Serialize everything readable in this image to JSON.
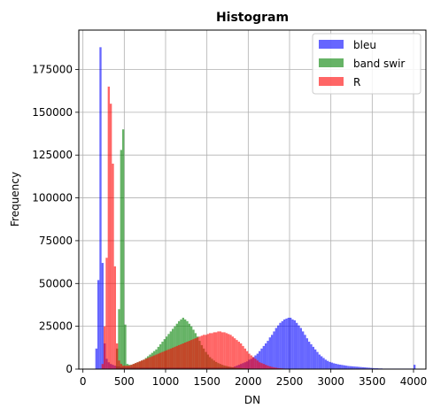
{
  "chart_data": {
    "type": "bar",
    "title": "Histogram",
    "xlabel": "DN",
    "ylabel": "Frequency",
    "xlim": [
      -50,
      4150
    ],
    "ylim": [
      0,
      198000
    ],
    "xticks": [
      0,
      500,
      1000,
      1500,
      2000,
      2500,
      3000,
      3500,
      4000
    ],
    "yticks": [
      0,
      25000,
      50000,
      75000,
      100000,
      125000,
      150000,
      175000
    ],
    "grid": true,
    "legend_position": "top-right",
    "bin_width": 25,
    "series": [
      {
        "name": "bleu",
        "color": "#0000ff",
        "opacity": 0.6,
        "x": [
          150,
          175,
          200,
          225,
          250,
          275,
          300,
          325,
          350,
          375,
          400,
          425,
          450,
          475,
          500,
          525,
          550,
          575,
          600,
          625,
          650,
          675,
          700,
          725,
          750,
          775,
          800,
          825,
          850,
          875,
          900,
          925,
          950,
          975,
          1000,
          1025,
          1050,
          1075,
          1100,
          1125,
          1150,
          1175,
          1200,
          1225,
          1250,
          1275,
          1300,
          1325,
          1350,
          1375,
          1400,
          1425,
          1450,
          1475,
          1500,
          1525,
          1550,
          1575,
          1600,
          1625,
          1650,
          1675,
          1700,
          1725,
          1750,
          1775,
          1800,
          1825,
          1850,
          1875,
          1900,
          1925,
          1950,
          1975,
          2000,
          2025,
          2050,
          2075,
          2100,
          2125,
          2150,
          2175,
          2200,
          2225,
          2250,
          2275,
          2300,
          2325,
          2350,
          2375,
          2400,
          2425,
          2450,
          2475,
          2500,
          2525,
          2550,
          2575,
          2600,
          2625,
          2650,
          2675,
          2700,
          2725,
          2750,
          2775,
          2800,
          2825,
          2850,
          2875,
          2900,
          2925,
          2950,
          2975,
          3000,
          3025,
          3050,
          3075,
          3100,
          3125,
          3150,
          3175,
          3200,
          3225,
          3250,
          3275,
          3300,
          3325,
          3350,
          3375,
          3400,
          3425,
          3450,
          3475,
          3500,
          3525,
          3550,
          3575,
          3600,
          3625,
          3650,
          3675,
          3700,
          3725,
          3750,
          3775,
          3800,
          3825,
          3850,
          3875,
          3900,
          3925,
          3950,
          3975,
          4000
        ],
        "values": [
          12000,
          52000,
          188000,
          62000,
          15000,
          6000,
          4000,
          3000,
          2500,
          2000,
          1500,
          1500,
          1000,
          1000,
          1000,
          1000,
          1000,
          1000,
          1000,
          1000,
          1000,
          1000,
          1000,
          1000,
          1000,
          1000,
          1000,
          1000,
          1000,
          1000,
          1000,
          1000,
          1000,
          1000,
          1000,
          1000,
          1000,
          1000,
          1000,
          1000,
          1000,
          1000,
          1000,
          1000,
          1000,
          1000,
          1000,
          1000,
          1000,
          1000,
          1000,
          1000,
          1000,
          1000,
          1000,
          1000,
          1000,
          1000,
          1000,
          1000,
          1000,
          1000,
          1000,
          1000,
          1000,
          1000,
          1000,
          1500,
          2000,
          2500,
          3000,
          3500,
          4000,
          4500,
          5500,
          6000,
          7000,
          8000,
          9000,
          10500,
          12000,
          13500,
          15000,
          16500,
          18500,
          20000,
          22000,
          24000,
          25500,
          27000,
          28000,
          29000,
          29500,
          30000,
          30000,
          29000,
          28500,
          27000,
          25500,
          24000,
          22000,
          20000,
          18000,
          16000,
          14500,
          13000,
          11500,
          10000,
          8500,
          7500,
          6500,
          5500,
          4800,
          4200,
          3800,
          3400,
          3100,
          2800,
          2600,
          2400,
          2200,
          2000,
          1800,
          1700,
          1600,
          1500,
          1400,
          1300,
          1200,
          1100,
          1000,
          900,
          800,
          700,
          600,
          500,
          500,
          400,
          400,
          300,
          300,
          300,
          300,
          300,
          300,
          300,
          300,
          300,
          300,
          300,
          300,
          300,
          300,
          300,
          2500
        ]
      },
      {
        "name": "band swir",
        "color": "#008000",
        "opacity": 0.6,
        "x": [
          400,
          425,
          450,
          475,
          500,
          525,
          550,
          575,
          600,
          625,
          650,
          675,
          700,
          725,
          750,
          775,
          800,
          825,
          850,
          875,
          900,
          925,
          950,
          975,
          1000,
          1025,
          1050,
          1075,
          1100,
          1125,
          1150,
          1175,
          1200,
          1225,
          1250,
          1275,
          1300,
          1325,
          1350,
          1375,
          1400,
          1425,
          1450,
          1475,
          1500,
          1525,
          1550,
          1575,
          1600,
          1625,
          1650,
          1675,
          1700,
          1725,
          1750,
          1775,
          1800,
          1825,
          1850,
          1875,
          1900,
          1925,
          1950,
          1975,
          2000,
          2025,
          2050,
          2075,
          2100,
          2125,
          2150,
          2175,
          2200
        ],
        "values": [
          12000,
          35000,
          128000,
          140000,
          26000,
          3000,
          2500,
          2500,
          3000,
          3500,
          4000,
          4500,
          5000,
          5500,
          6500,
          7500,
          8500,
          9500,
          10500,
          11500,
          13000,
          14500,
          16000,
          17500,
          19000,
          20500,
          22000,
          23500,
          25000,
          26500,
          28000,
          29000,
          30000,
          29000,
          28000,
          26500,
          25000,
          23000,
          21000,
          19000,
          16500,
          14000,
          12000,
          10000,
          8500,
          7000,
          6000,
          5000,
          4200,
          3500,
          3000,
          2500,
          2100,
          1800,
          1500,
          1300,
          1100,
          900,
          800,
          700,
          600,
          500,
          400,
          300,
          300,
          200,
          200,
          200,
          100,
          100,
          100,
          100,
          100
        ]
      },
      {
        "name": "R",
        "color": "#ff0000",
        "opacity": 0.6,
        "x": [
          225,
          250,
          275,
          300,
          325,
          350,
          375,
          400,
          425,
          450,
          475,
          500,
          525,
          550,
          575,
          600,
          625,
          650,
          675,
          700,
          725,
          750,
          775,
          800,
          825,
          850,
          875,
          900,
          925,
          950,
          975,
          1000,
          1025,
          1050,
          1075,
          1100,
          1125,
          1150,
          1175,
          1200,
          1225,
          1250,
          1275,
          1300,
          1325,
          1350,
          1375,
          1400,
          1425,
          1450,
          1475,
          1500,
          1525,
          1550,
          1575,
          1600,
          1625,
          1650,
          1675,
          1700,
          1725,
          1750,
          1775,
          1800,
          1825,
          1850,
          1875,
          1900,
          1925,
          1950,
          1975,
          2000,
          2025,
          2050,
          2075,
          2100,
          2125,
          2150,
          2175,
          2200,
          2225,
          2250,
          2275,
          2300,
          2325,
          2350,
          2375,
          2400,
          2425,
          2450,
          2475,
          2500
        ],
        "values": [
          3000,
          25000,
          65000,
          165000,
          155000,
          120000,
          60000,
          15000,
          5000,
          3000,
          2000,
          2000,
          2000,
          2000,
          2500,
          3000,
          3500,
          4000,
          4500,
          5000,
          5500,
          6000,
          6500,
          7000,
          7500,
          8000,
          8500,
          9000,
          9500,
          10000,
          10500,
          11000,
          11500,
          12000,
          12500,
          13000,
          13500,
          14000,
          14500,
          15000,
          15500,
          16000,
          16500,
          17000,
          17500,
          18000,
          18500,
          19000,
          19500,
          20000,
          20000,
          20500,
          21000,
          21000,
          21500,
          21500,
          22000,
          22000,
          21500,
          21500,
          21000,
          20500,
          20000,
          19000,
          18000,
          17000,
          16000,
          15000,
          13500,
          12000,
          10500,
          9000,
          8000,
          7000,
          6000,
          5000,
          4000,
          3500,
          3000,
          2500,
          2000,
          1600,
          1300,
          1000,
          800,
          600,
          500,
          400,
          300,
          200,
          200,
          100
        ]
      }
    ]
  }
}
